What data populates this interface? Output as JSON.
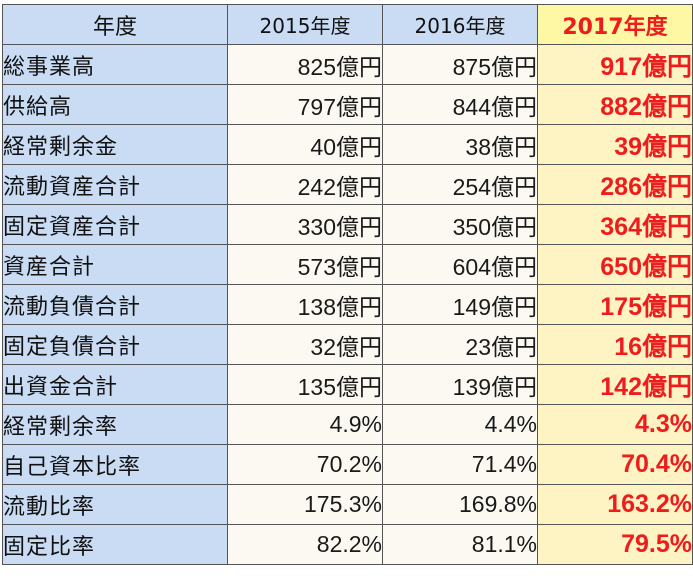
{
  "header": {
    "label": "年度",
    "years": [
      "2015年度",
      "2016年度",
      "2017年度"
    ]
  },
  "rows": [
    {
      "label": "総事業高",
      "v2015": "825億円",
      "v2016": "875億円",
      "v2017": "917億円"
    },
    {
      "label": "供給高",
      "v2015": "797億円",
      "v2016": "844億円",
      "v2017": "882億円"
    },
    {
      "label": "経常剰余金",
      "v2015": "40億円",
      "v2016": "38億円",
      "v2017": "39億円"
    },
    {
      "label": "流動資産合計",
      "v2015": "242億円",
      "v2016": "254億円",
      "v2017": "286億円"
    },
    {
      "label": "固定資産合計",
      "v2015": "330億円",
      "v2016": "350億円",
      "v2017": "364億円"
    },
    {
      "label": "資産合計",
      "v2015": "573億円",
      "v2016": "604億円",
      "v2017": "650億円"
    },
    {
      "label": "流動負債合計",
      "v2015": "138億円",
      "v2016": "149億円",
      "v2017": "175億円"
    },
    {
      "label": "固定負債合計",
      "v2015": "32億円",
      "v2016": "23億円",
      "v2017": "16億円"
    },
    {
      "label": "出資金合計",
      "v2015": "135億円",
      "v2016": "139億円",
      "v2017": "142億円"
    },
    {
      "label": "経常剰余率",
      "v2015": "4.9%",
      "v2016": "4.4%",
      "v2017": "4.3%"
    },
    {
      "label": "自己資本比率",
      "v2015": "70.2%",
      "v2016": "71.4%",
      "v2017": "70.4%"
    },
    {
      "label": "流動比率",
      "v2015": "175.3%",
      "v2016": "169.8%",
      "v2017": "163.2%"
    },
    {
      "label": "固定比率",
      "v2015": "82.2%",
      "v2016": "81.1%",
      "v2017": "79.5%"
    }
  ],
  "colors": {
    "label_bg": "#c9dcf3",
    "highlight_bg": "#fef7a4",
    "highlight_text": "#ee1c1c"
  }
}
